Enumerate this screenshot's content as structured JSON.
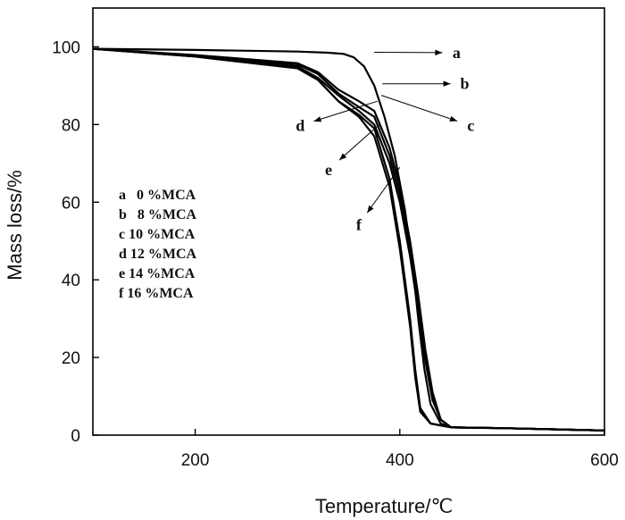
{
  "chart_data": {
    "type": "line",
    "xlabel": "Temperature/℃",
    "ylabel": "Mass loss/%",
    "xlim": [
      100,
      600
    ],
    "ylim": [
      0,
      110
    ],
    "xticks": [
      200,
      400,
      600
    ],
    "yticks": [
      0,
      20,
      40,
      60,
      80,
      100
    ],
    "grid": false,
    "legend_position": "left",
    "legend": [
      {
        "letter": "a",
        "text": "0 %MCA"
      },
      {
        "letter": "b",
        "text": "8 %MCA"
      },
      {
        "letter": "c",
        "text": "10 %MCA"
      },
      {
        "letter": "d",
        "text": "12 %MCA"
      },
      {
        "letter": "e",
        "text": "14 %MCA"
      },
      {
        "letter": "f",
        "text": "16 %MCA"
      }
    ],
    "series": [
      {
        "name": "a",
        "x": [
          100,
          200,
          300,
          330,
          345,
          355,
          365,
          375,
          385,
          395,
          405,
          412,
          418,
          424,
          430,
          440,
          450,
          500,
          600
        ],
        "y": [
          99.5,
          99.2,
          98.8,
          98.5,
          98.2,
          97.3,
          95,
          90,
          82,
          72,
          58,
          45,
          30,
          17,
          8,
          3,
          2,
          1.8,
          1.2
        ]
      },
      {
        "name": "b",
        "x": [
          100,
          200,
          300,
          320,
          340,
          360,
          375,
          390,
          400,
          410,
          418,
          425,
          432,
          440,
          450,
          500,
          600
        ],
        "y": [
          99.5,
          97.9,
          95.8,
          93.5,
          89,
          86,
          83.5,
          74,
          64,
          50,
          36,
          22,
          11,
          4,
          2,
          1.8,
          1.2
        ]
      },
      {
        "name": "c",
        "x": [
          100,
          200,
          300,
          320,
          340,
          360,
          375,
          390,
          400,
          410,
          418,
          425,
          432,
          440,
          450,
          500,
          600
        ],
        "y": [
          99.5,
          97.8,
          95.5,
          93,
          88,
          84.5,
          82,
          72,
          62,
          48,
          34,
          20,
          10,
          4,
          2,
          1.8,
          1.2
        ]
      },
      {
        "name": "d",
        "x": [
          100,
          200,
          300,
          320,
          340,
          360,
          375,
          390,
          400,
          410,
          418,
          425,
          432,
          440,
          450,
          500,
          600
        ],
        "y": [
          99.5,
          97.6,
          95,
          92,
          87.5,
          83.5,
          80,
          70,
          60,
          46,
          32,
          19,
          9,
          4,
          2,
          1.8,
          1.2
        ]
      },
      {
        "name": "e",
        "x": [
          100,
          200,
          300,
          320,
          340,
          360,
          375,
          390,
          400,
          410,
          415,
          420,
          430,
          450,
          500,
          600
        ],
        "y": [
          99.5,
          97.5,
          94.5,
          91.5,
          86,
          82,
          77,
          64,
          48,
          28,
          15,
          6,
          3,
          2,
          1.8,
          1.2
        ]
      },
      {
        "name": "f",
        "x": [
          100,
          200,
          300,
          320,
          340,
          360,
          375,
          390,
          400,
          410,
          415,
          420,
          430,
          450,
          500,
          600
        ],
        "y": [
          99.5,
          97.5,
          94.5,
          91.5,
          86,
          82.5,
          79,
          66,
          50,
          30,
          17,
          7,
          3,
          2,
          1.8,
          1.2
        ]
      }
    ],
    "annotations": [
      {
        "label": "a",
        "target_x": 375,
        "target_y": 98.6,
        "text_x": 452,
        "text_y": 98.5
      },
      {
        "label": "b",
        "target_x": 383,
        "target_y": 90.5,
        "text_x": 460,
        "text_y": 90.5
      },
      {
        "label": "c",
        "target_x": 382,
        "target_y": 87.5,
        "text_x": 466,
        "text_y": 80
      },
      {
        "label": "d",
        "target_x": 378,
        "target_y": 86,
        "text_x": 306,
        "text_y": 80
      },
      {
        "label": "e",
        "target_x": 380,
        "target_y": 80,
        "text_x": 333,
        "text_y": 69
      },
      {
        "label": "f",
        "target_x": 400,
        "target_y": 69,
        "text_x": 362,
        "text_y": 55
      }
    ]
  }
}
